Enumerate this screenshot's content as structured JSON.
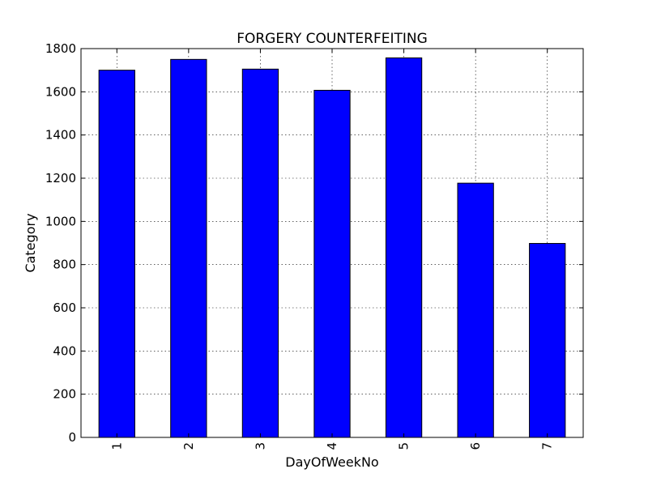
{
  "chart_data": {
    "type": "bar",
    "title": "FORGERY COUNTERFEITING",
    "xlabel": "DayOfWeekNo",
    "ylabel": "Category",
    "categories": [
      "1",
      "2",
      "3",
      "4",
      "5",
      "6",
      "7"
    ],
    "values": [
      1700,
      1750,
      1705,
      1607,
      1757,
      1177,
      898
    ],
    "ylim": [
      0,
      1800
    ],
    "yticks": [
      0,
      200,
      400,
      600,
      800,
      1000,
      1200,
      1400,
      1600,
      1800
    ],
    "grid": true,
    "legend": "none",
    "bar_color": "#0000ff"
  }
}
